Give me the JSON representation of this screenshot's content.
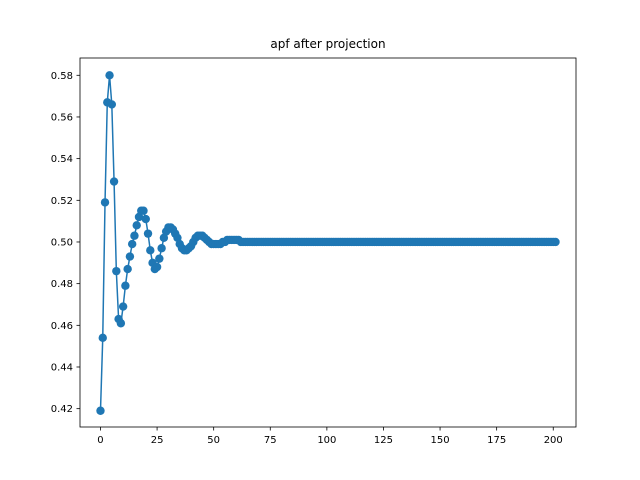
{
  "chart_data": {
    "type": "line",
    "title": "apf after projection",
    "xlabel": "",
    "ylabel": "",
    "xlim": [
      -9.05,
      210.05
    ],
    "ylim": [
      0.4112,
      0.5883
    ],
    "xticks": [
      0,
      25,
      50,
      75,
      100,
      125,
      150,
      175,
      200
    ],
    "xtick_labels": [
      "0",
      "25",
      "50",
      "75",
      "100",
      "125",
      "150",
      "175",
      "200"
    ],
    "yticks": [
      0.42,
      0.44,
      0.46,
      0.48,
      0.5,
      0.52,
      0.54,
      0.56,
      0.58
    ],
    "ytick_labels": [
      "0.42",
      "0.44",
      "0.46",
      "0.48",
      "0.50",
      "0.52",
      "0.54",
      "0.56",
      "0.58"
    ],
    "grid": false,
    "legend": "none",
    "colors": {
      "series": "#1f77b4"
    },
    "series": [
      {
        "markers": true,
        "points": [
          [
            0,
            0.419
          ],
          [
            1,
            0.454
          ],
          [
            2,
            0.519
          ],
          [
            3,
            0.567
          ],
          [
            4,
            0.58
          ],
          [
            5,
            0.566
          ],
          [
            6,
            0.529
          ],
          [
            7,
            0.486
          ],
          [
            8,
            0.463
          ],
          [
            9,
            0.461
          ],
          [
            10,
            0.469
          ],
          [
            11,
            0.479
          ],
          [
            12,
            0.487
          ],
          [
            13,
            0.493
          ],
          [
            14,
            0.499
          ],
          [
            15,
            0.503
          ],
          [
            16,
            0.508
          ],
          [
            17,
            0.512
          ],
          [
            18,
            0.515
          ],
          [
            19,
            0.515
          ],
          [
            20,
            0.511
          ],
          [
            21,
            0.504
          ],
          [
            22,
            0.496
          ],
          [
            23,
            0.49
          ],
          [
            24,
            0.487
          ],
          [
            25,
            0.488
          ],
          [
            26,
            0.492
          ],
          [
            27,
            0.497
          ],
          [
            28,
            0.502
          ],
          [
            29,
            0.505
          ],
          [
            30,
            0.507
          ],
          [
            31,
            0.507
          ],
          [
            32,
            0.506
          ],
          [
            33,
            0.504
          ],
          [
            34,
            0.502
          ],
          [
            35,
            0.499
          ],
          [
            36,
            0.497
          ],
          [
            37,
            0.496
          ],
          [
            38,
            0.496
          ],
          [
            39,
            0.497
          ],
          [
            40,
            0.498
          ],
          [
            41,
            0.5
          ],
          [
            42,
            0.502
          ],
          [
            43,
            0.503
          ],
          [
            44,
            0.503
          ],
          [
            45,
            0.503
          ],
          [
            46,
            0.502
          ],
          [
            47,
            0.501
          ],
          [
            48,
            0.5
          ],
          [
            49,
            0.499
          ],
          [
            50,
            0.499
          ],
          [
            51,
            0.499
          ],
          [
            52,
            0.499
          ],
          [
            53,
            0.499
          ],
          [
            54,
            0.5
          ],
          [
            55,
            0.5
          ],
          [
            56,
            0.501
          ],
          [
            57,
            0.501
          ],
          [
            58,
            0.501
          ],
          [
            59,
            0.501
          ],
          [
            60,
            0.501
          ],
          [
            61,
            0.501
          ],
          [
            62,
            0.5
          ],
          [
            63,
            0.5
          ],
          [
            64,
            0.5
          ],
          [
            65,
            0.5
          ],
          [
            66,
            0.5
          ],
          [
            67,
            0.5
          ],
          [
            68,
            0.5
          ],
          [
            69,
            0.5
          ],
          [
            70,
            0.5
          ],
          [
            71,
            0.5
          ],
          [
            72,
            0.5
          ],
          [
            73,
            0.5
          ],
          [
            74,
            0.5
          ],
          [
            75,
            0.5
          ],
          [
            76,
            0.5
          ],
          [
            77,
            0.5
          ],
          [
            78,
            0.5
          ],
          [
            79,
            0.5
          ],
          [
            80,
            0.5
          ],
          [
            81,
            0.5
          ],
          [
            82,
            0.5
          ],
          [
            83,
            0.5
          ],
          [
            84,
            0.5
          ],
          [
            85,
            0.5
          ],
          [
            86,
            0.5
          ],
          [
            87,
            0.5
          ],
          [
            88,
            0.5
          ],
          [
            89,
            0.5
          ],
          [
            90,
            0.5
          ],
          [
            91,
            0.5
          ],
          [
            92,
            0.5
          ],
          [
            93,
            0.5
          ],
          [
            94,
            0.5
          ],
          [
            95,
            0.5
          ],
          [
            96,
            0.5
          ],
          [
            97,
            0.5
          ],
          [
            98,
            0.5
          ],
          [
            99,
            0.5
          ],
          [
            100,
            0.5
          ],
          [
            101,
            0.5
          ],
          [
            102,
            0.5
          ],
          [
            103,
            0.5
          ],
          [
            104,
            0.5
          ],
          [
            105,
            0.5
          ],
          [
            106,
            0.5
          ],
          [
            107,
            0.5
          ],
          [
            108,
            0.5
          ],
          [
            109,
            0.5
          ],
          [
            110,
            0.5
          ],
          [
            111,
            0.5
          ],
          [
            112,
            0.5
          ],
          [
            113,
            0.5
          ],
          [
            114,
            0.5
          ],
          [
            115,
            0.5
          ],
          [
            116,
            0.5
          ],
          [
            117,
            0.5
          ],
          [
            118,
            0.5
          ],
          [
            119,
            0.5
          ],
          [
            120,
            0.5
          ],
          [
            121,
            0.5
          ],
          [
            122,
            0.5
          ],
          [
            123,
            0.5
          ],
          [
            124,
            0.5
          ],
          [
            125,
            0.5
          ],
          [
            126,
            0.5
          ],
          [
            127,
            0.5
          ],
          [
            128,
            0.5
          ],
          [
            129,
            0.5
          ],
          [
            130,
            0.5
          ],
          [
            131,
            0.5
          ],
          [
            132,
            0.5
          ],
          [
            133,
            0.5
          ],
          [
            134,
            0.5
          ],
          [
            135,
            0.5
          ],
          [
            136,
            0.5
          ],
          [
            137,
            0.5
          ],
          [
            138,
            0.5
          ],
          [
            139,
            0.5
          ],
          [
            140,
            0.5
          ],
          [
            141,
            0.5
          ],
          [
            142,
            0.5
          ],
          [
            143,
            0.5
          ],
          [
            144,
            0.5
          ],
          [
            145,
            0.5
          ],
          [
            146,
            0.5
          ],
          [
            147,
            0.5
          ],
          [
            148,
            0.5
          ],
          [
            149,
            0.5
          ],
          [
            150,
            0.5
          ],
          [
            151,
            0.5
          ],
          [
            152,
            0.5
          ],
          [
            153,
            0.5
          ],
          [
            154,
            0.5
          ],
          [
            155,
            0.5
          ],
          [
            156,
            0.5
          ],
          [
            157,
            0.5
          ],
          [
            158,
            0.5
          ],
          [
            159,
            0.5
          ],
          [
            160,
            0.5
          ],
          [
            161,
            0.5
          ],
          [
            162,
            0.5
          ],
          [
            163,
            0.5
          ],
          [
            164,
            0.5
          ],
          [
            165,
            0.5
          ],
          [
            166,
            0.5
          ],
          [
            167,
            0.5
          ],
          [
            168,
            0.5
          ],
          [
            169,
            0.5
          ],
          [
            170,
            0.5
          ],
          [
            171,
            0.5
          ],
          [
            172,
            0.5
          ],
          [
            173,
            0.5
          ],
          [
            174,
            0.5
          ],
          [
            175,
            0.5
          ],
          [
            176,
            0.5
          ],
          [
            177,
            0.5
          ],
          [
            178,
            0.5
          ],
          [
            179,
            0.5
          ],
          [
            180,
            0.5
          ],
          [
            181,
            0.5
          ],
          [
            182,
            0.5
          ],
          [
            183,
            0.5
          ],
          [
            184,
            0.5
          ],
          [
            185,
            0.5
          ],
          [
            186,
            0.5
          ],
          [
            187,
            0.5
          ],
          [
            188,
            0.5
          ],
          [
            189,
            0.5
          ],
          [
            190,
            0.5
          ],
          [
            191,
            0.5
          ],
          [
            192,
            0.5
          ],
          [
            193,
            0.5
          ],
          [
            194,
            0.5
          ],
          [
            195,
            0.5
          ],
          [
            196,
            0.5
          ],
          [
            197,
            0.5
          ],
          [
            198,
            0.5
          ],
          [
            199,
            0.5
          ],
          [
            200,
            0.5
          ],
          [
            201,
            0.5
          ]
        ]
      }
    ]
  }
}
